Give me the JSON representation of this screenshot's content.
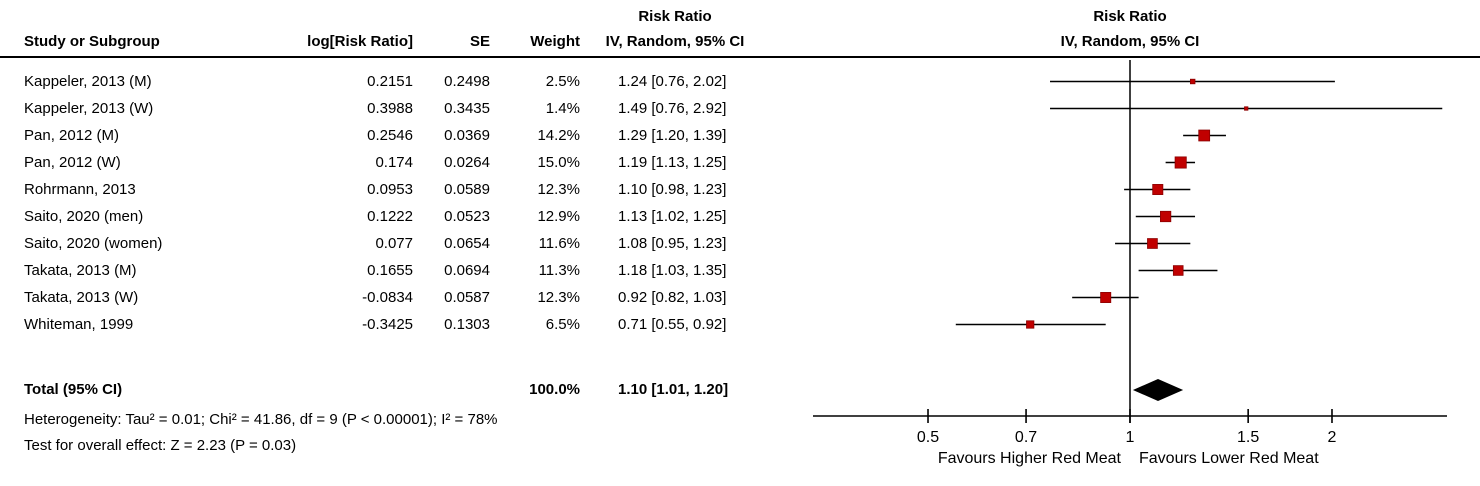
{
  "header": {
    "effect_measure_left": "Risk Ratio",
    "effect_measure_right": "Risk Ratio",
    "study": "Study or Subgroup",
    "log_rr": "log[Risk Ratio]",
    "se": "SE",
    "weight": "Weight",
    "ci_method_left": "IV, Random, 95% CI",
    "ci_method_right": "IV, Random, 95% CI"
  },
  "table": {
    "rows": [
      {
        "study": "Kappeler, 2013 (M)",
        "log_rr": "0.2151",
        "se": "0.2498",
        "weight": "2.5%",
        "ci": "1.24 [0.76, 2.02]"
      },
      {
        "study": "Kappeler, 2013 (W)",
        "log_rr": "0.3988",
        "se": "0.3435",
        "weight": "1.4%",
        "ci": "1.49 [0.76, 2.92]"
      },
      {
        "study": "Pan, 2012 (M)",
        "log_rr": "0.2546",
        "se": "0.0369",
        "weight": "14.2%",
        "ci": "1.29 [1.20, 1.39]"
      },
      {
        "study": "Pan, 2012 (W)",
        "log_rr": "0.174",
        "se": "0.0264",
        "weight": "15.0%",
        "ci": "1.19 [1.13, 1.25]"
      },
      {
        "study": "Rohrmann, 2013",
        "log_rr": "0.0953",
        "se": "0.0589",
        "weight": "12.3%",
        "ci": "1.10 [0.98, 1.23]"
      },
      {
        "study": "Saito, 2020 (men)",
        "log_rr": "0.1222",
        "se": "0.0523",
        "weight": "12.9%",
        "ci": "1.13 [1.02, 1.25]"
      },
      {
        "study": "Saito, 2020 (women)",
        "log_rr": "0.077",
        "se": "0.0654",
        "weight": "11.6%",
        "ci": "1.08 [0.95, 1.23]"
      },
      {
        "study": "Takata, 2013 (M)",
        "log_rr": "0.1655",
        "se": "0.0694",
        "weight": "11.3%",
        "ci": "1.18 [1.03, 1.35]"
      },
      {
        "study": "Takata, 2013 (W)",
        "log_rr": "-0.0834",
        "se": "0.0587",
        "weight": "12.3%",
        "ci": "0.92 [0.82, 1.03]"
      },
      {
        "study": "Whiteman, 1999",
        "log_rr": "-0.3425",
        "se": "0.1303",
        "weight": "6.5%",
        "ci": "0.71 [0.55, 0.92]"
      }
    ],
    "total": {
      "label": "Total (95% CI)",
      "weight": "100.0%",
      "ci": "1.10 [1.01, 1.20]"
    },
    "heterogeneity": "Heterogeneity: Tau² = 0.01; Chi² = 41.86, df = 9 (P < 0.00001); I² = 78%",
    "overall_effect": "Test for overall effect: Z = 2.23 (P = 0.03)"
  },
  "chart_data": {
    "type": "forest",
    "scale": "log10",
    "effect_label": "Risk Ratio",
    "method_label": "IV, Random, 95% CI",
    "null_line_value": 1,
    "axis": {
      "domain": [
        0.335,
        2.98
      ],
      "ticks": [
        0.5,
        0.7,
        1,
        1.5,
        2
      ],
      "tick_labels": [
        "0.5",
        "0.7",
        "1",
        "1.5",
        "2"
      ],
      "label_left_of_null": "Favours Higher Red Meat",
      "label_right_of_null": "Favours Lower Red Meat"
    },
    "studies": [
      {
        "name": "Kappeler, 2013 (M)",
        "rr": 1.24,
        "lo": 0.76,
        "hi": 2.02,
        "weight_pct": 2.5
      },
      {
        "name": "Kappeler, 2013 (W)",
        "rr": 1.49,
        "lo": 0.76,
        "hi": 2.92,
        "weight_pct": 1.4
      },
      {
        "name": "Pan, 2012 (M)",
        "rr": 1.29,
        "lo": 1.2,
        "hi": 1.39,
        "weight_pct": 14.2
      },
      {
        "name": "Pan, 2012 (W)",
        "rr": 1.19,
        "lo": 1.13,
        "hi": 1.25,
        "weight_pct": 15.0
      },
      {
        "name": "Rohrmann, 2013",
        "rr": 1.1,
        "lo": 0.98,
        "hi": 1.23,
        "weight_pct": 12.3
      },
      {
        "name": "Saito, 2020 (men)",
        "rr": 1.13,
        "lo": 1.02,
        "hi": 1.25,
        "weight_pct": 12.9
      },
      {
        "name": "Saito, 2020 (women)",
        "rr": 1.08,
        "lo": 0.95,
        "hi": 1.23,
        "weight_pct": 11.6
      },
      {
        "name": "Takata, 2013 (M)",
        "rr": 1.18,
        "lo": 1.03,
        "hi": 1.35,
        "weight_pct": 11.3
      },
      {
        "name": "Takata, 2013 (W)",
        "rr": 0.92,
        "lo": 0.82,
        "hi": 1.03,
        "weight_pct": 12.3
      },
      {
        "name": "Whiteman, 1999",
        "rr": 0.71,
        "lo": 0.55,
        "hi": 0.92,
        "weight_pct": 6.5
      }
    ],
    "total": {
      "rr": 1.1,
      "lo": 1.01,
      "hi": 1.2
    }
  },
  "colors": {
    "marker_fill": "#C00000",
    "marker_stroke": "#8B0000",
    "line_color": "#000000",
    "diamond_fill": "#000000"
  }
}
